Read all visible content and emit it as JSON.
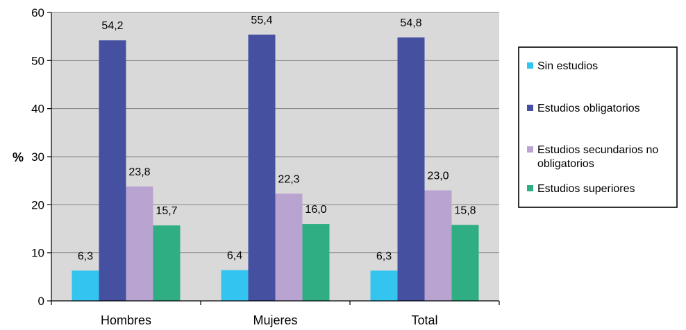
{
  "chart_data": {
    "type": "bar",
    "title": "",
    "xlabel": "",
    "ylabel": "%",
    "ylim": [
      0,
      60
    ],
    "yticks": [
      0,
      10,
      20,
      30,
      40,
      50,
      60
    ],
    "grid": true,
    "legend_position": "right",
    "categories": [
      "Hombres",
      "Mujeres",
      "Total"
    ],
    "series": [
      {
        "name": "Sin estudios",
        "color": "#33C4F0",
        "values": [
          6.3,
          6.4,
          6.3
        ],
        "labels": [
          "6,3",
          "6,4",
          "6,3"
        ]
      },
      {
        "name": "Estudios obligatorios",
        "color": "#4650A1",
        "values": [
          54.2,
          55.4,
          54.8
        ],
        "labels": [
          "54,2",
          "55,4",
          "54,8"
        ]
      },
      {
        "name": "Estudios secundarios no obligatorios",
        "legend_lines": [
          "Estudios secundarios no",
          "obligatorios"
        ],
        "color": "#B9A3D0",
        "values": [
          23.8,
          22.3,
          23.0
        ],
        "labels": [
          "23,8",
          "22,3",
          "23,0"
        ]
      },
      {
        "name": "Estudios superiores",
        "color": "#2FAE84",
        "values": [
          15.7,
          16.0,
          15.8
        ],
        "labels": [
          "15,7",
          "16,0",
          "15,8"
        ]
      }
    ],
    "plot_background": "#D9D9D9"
  }
}
